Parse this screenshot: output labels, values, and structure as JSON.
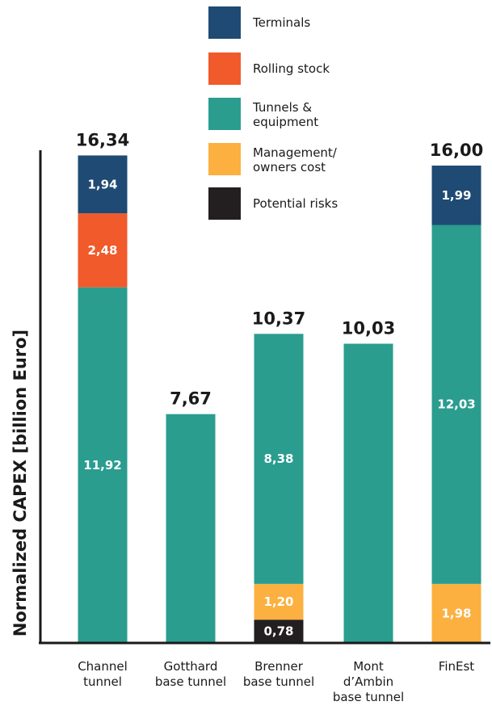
{
  "chart_data": {
    "type": "bar",
    "stacked": true,
    "ylabel": "Normalized CAPEX [billion Euro]",
    "xlabel": "",
    "categories": [
      [
        "Channel",
        "tunnel"
      ],
      [
        "Gotthard",
        "base tunnel"
      ],
      [
        "Brenner",
        "base tunnel"
      ],
      [
        "Mont",
        "d’Ambin",
        "base tunnel"
      ],
      [
        "FinEst"
      ]
    ],
    "totals": [
      "16,34",
      "7,67",
      "10,37",
      "10,03",
      "16,00"
    ],
    "ylim": [
      0,
      17.5
    ],
    "grid": false,
    "legend_position": "top",
    "series": [
      {
        "name": "Potential risks",
        "color": "#231f20",
        "values": [
          0,
          0,
          0.78,
          0,
          0
        ],
        "labels": [
          "",
          "",
          "0,78",
          "",
          ""
        ]
      },
      {
        "name": "Management/ owners cost",
        "legend_lines": [
          "Management/",
          "owners cost"
        ],
        "color": "#fbb040",
        "values": [
          0,
          0,
          1.2,
          0,
          1.98
        ],
        "labels": [
          "",
          "",
          "1,20",
          "",
          "1,98"
        ]
      },
      {
        "name": "Tunnels & equipment",
        "legend_lines": [
          "Tunnels &",
          "equipment"
        ],
        "color": "#2a9d8f",
        "values": [
          11.92,
          7.67,
          8.38,
          10.03,
          12.03
        ],
        "labels": [
          "11,92",
          "",
          "8,38",
          "",
          "12,03"
        ]
      },
      {
        "name": "Rolling stock",
        "color": "#f15a2b",
        "values": [
          2.48,
          0,
          0,
          0,
          0
        ],
        "labels": [
          "2,48",
          "",
          "",
          "",
          ""
        ]
      },
      {
        "name": "Terminals",
        "color": "#1f4a73",
        "values": [
          1.94,
          0,
          0,
          0,
          1.99
        ],
        "labels": [
          "1,94",
          "",
          "",
          "",
          "1,99"
        ]
      }
    ],
    "legend_order": [
      "Terminals",
      "Rolling stock",
      "Tunnels & equipment",
      "Management/ owners cost",
      "Potential risks"
    ]
  }
}
